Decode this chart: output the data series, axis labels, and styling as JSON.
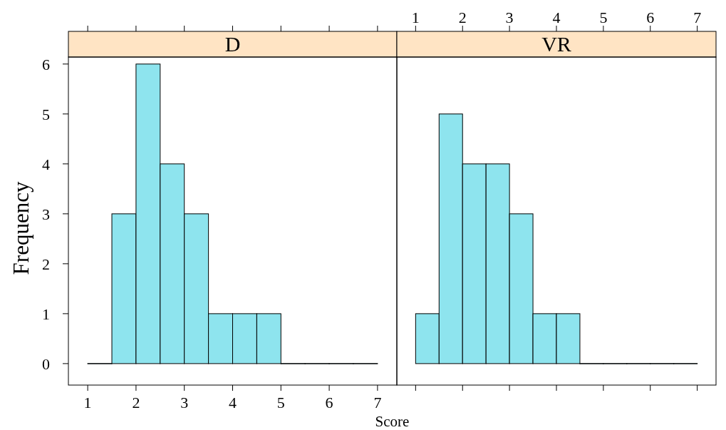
{
  "chart_data": [
    {
      "type": "histogram",
      "title": "D",
      "xlabel": "Score",
      "ylabel": "Frequency",
      "bins": [
        1,
        1.5,
        2,
        2.5,
        3,
        3.5,
        4,
        4.5,
        5,
        5.5,
        6,
        6.5,
        7
      ],
      "values": [
        0,
        3,
        6,
        4,
        3,
        1,
        1,
        1,
        0,
        0,
        0,
        0
      ],
      "color": "#8ee4ee",
      "xlim": [
        0.6,
        7.4
      ],
      "xticks": [
        1,
        2,
        3,
        4,
        5,
        6,
        7
      ],
      "ylim": [
        -0.43,
        6.14
      ],
      "yticks": [
        0,
        1,
        2,
        3,
        4,
        5,
        6
      ]
    },
    {
      "type": "histogram",
      "title": "VR",
      "bins": [
        1,
        1.5,
        2,
        2.5,
        3,
        3.5,
        4,
        4.5,
        5,
        5.5,
        6,
        6.5,
        7
      ],
      "values": [
        1,
        5,
        4,
        4,
        3,
        1,
        1,
        0,
        0,
        0,
        0,
        0
      ],
      "color": "#8ee4ee",
      "xlim": [
        0.6,
        7.4
      ],
      "xticks": [
        1,
        2,
        3,
        4,
        5,
        6,
        7
      ],
      "ylim": [
        -0.43,
        6.14
      ],
      "yticks": [
        0,
        1,
        2,
        3,
        4,
        5,
        6
      ],
      "tick_labels": "x"
    }
  ]
}
